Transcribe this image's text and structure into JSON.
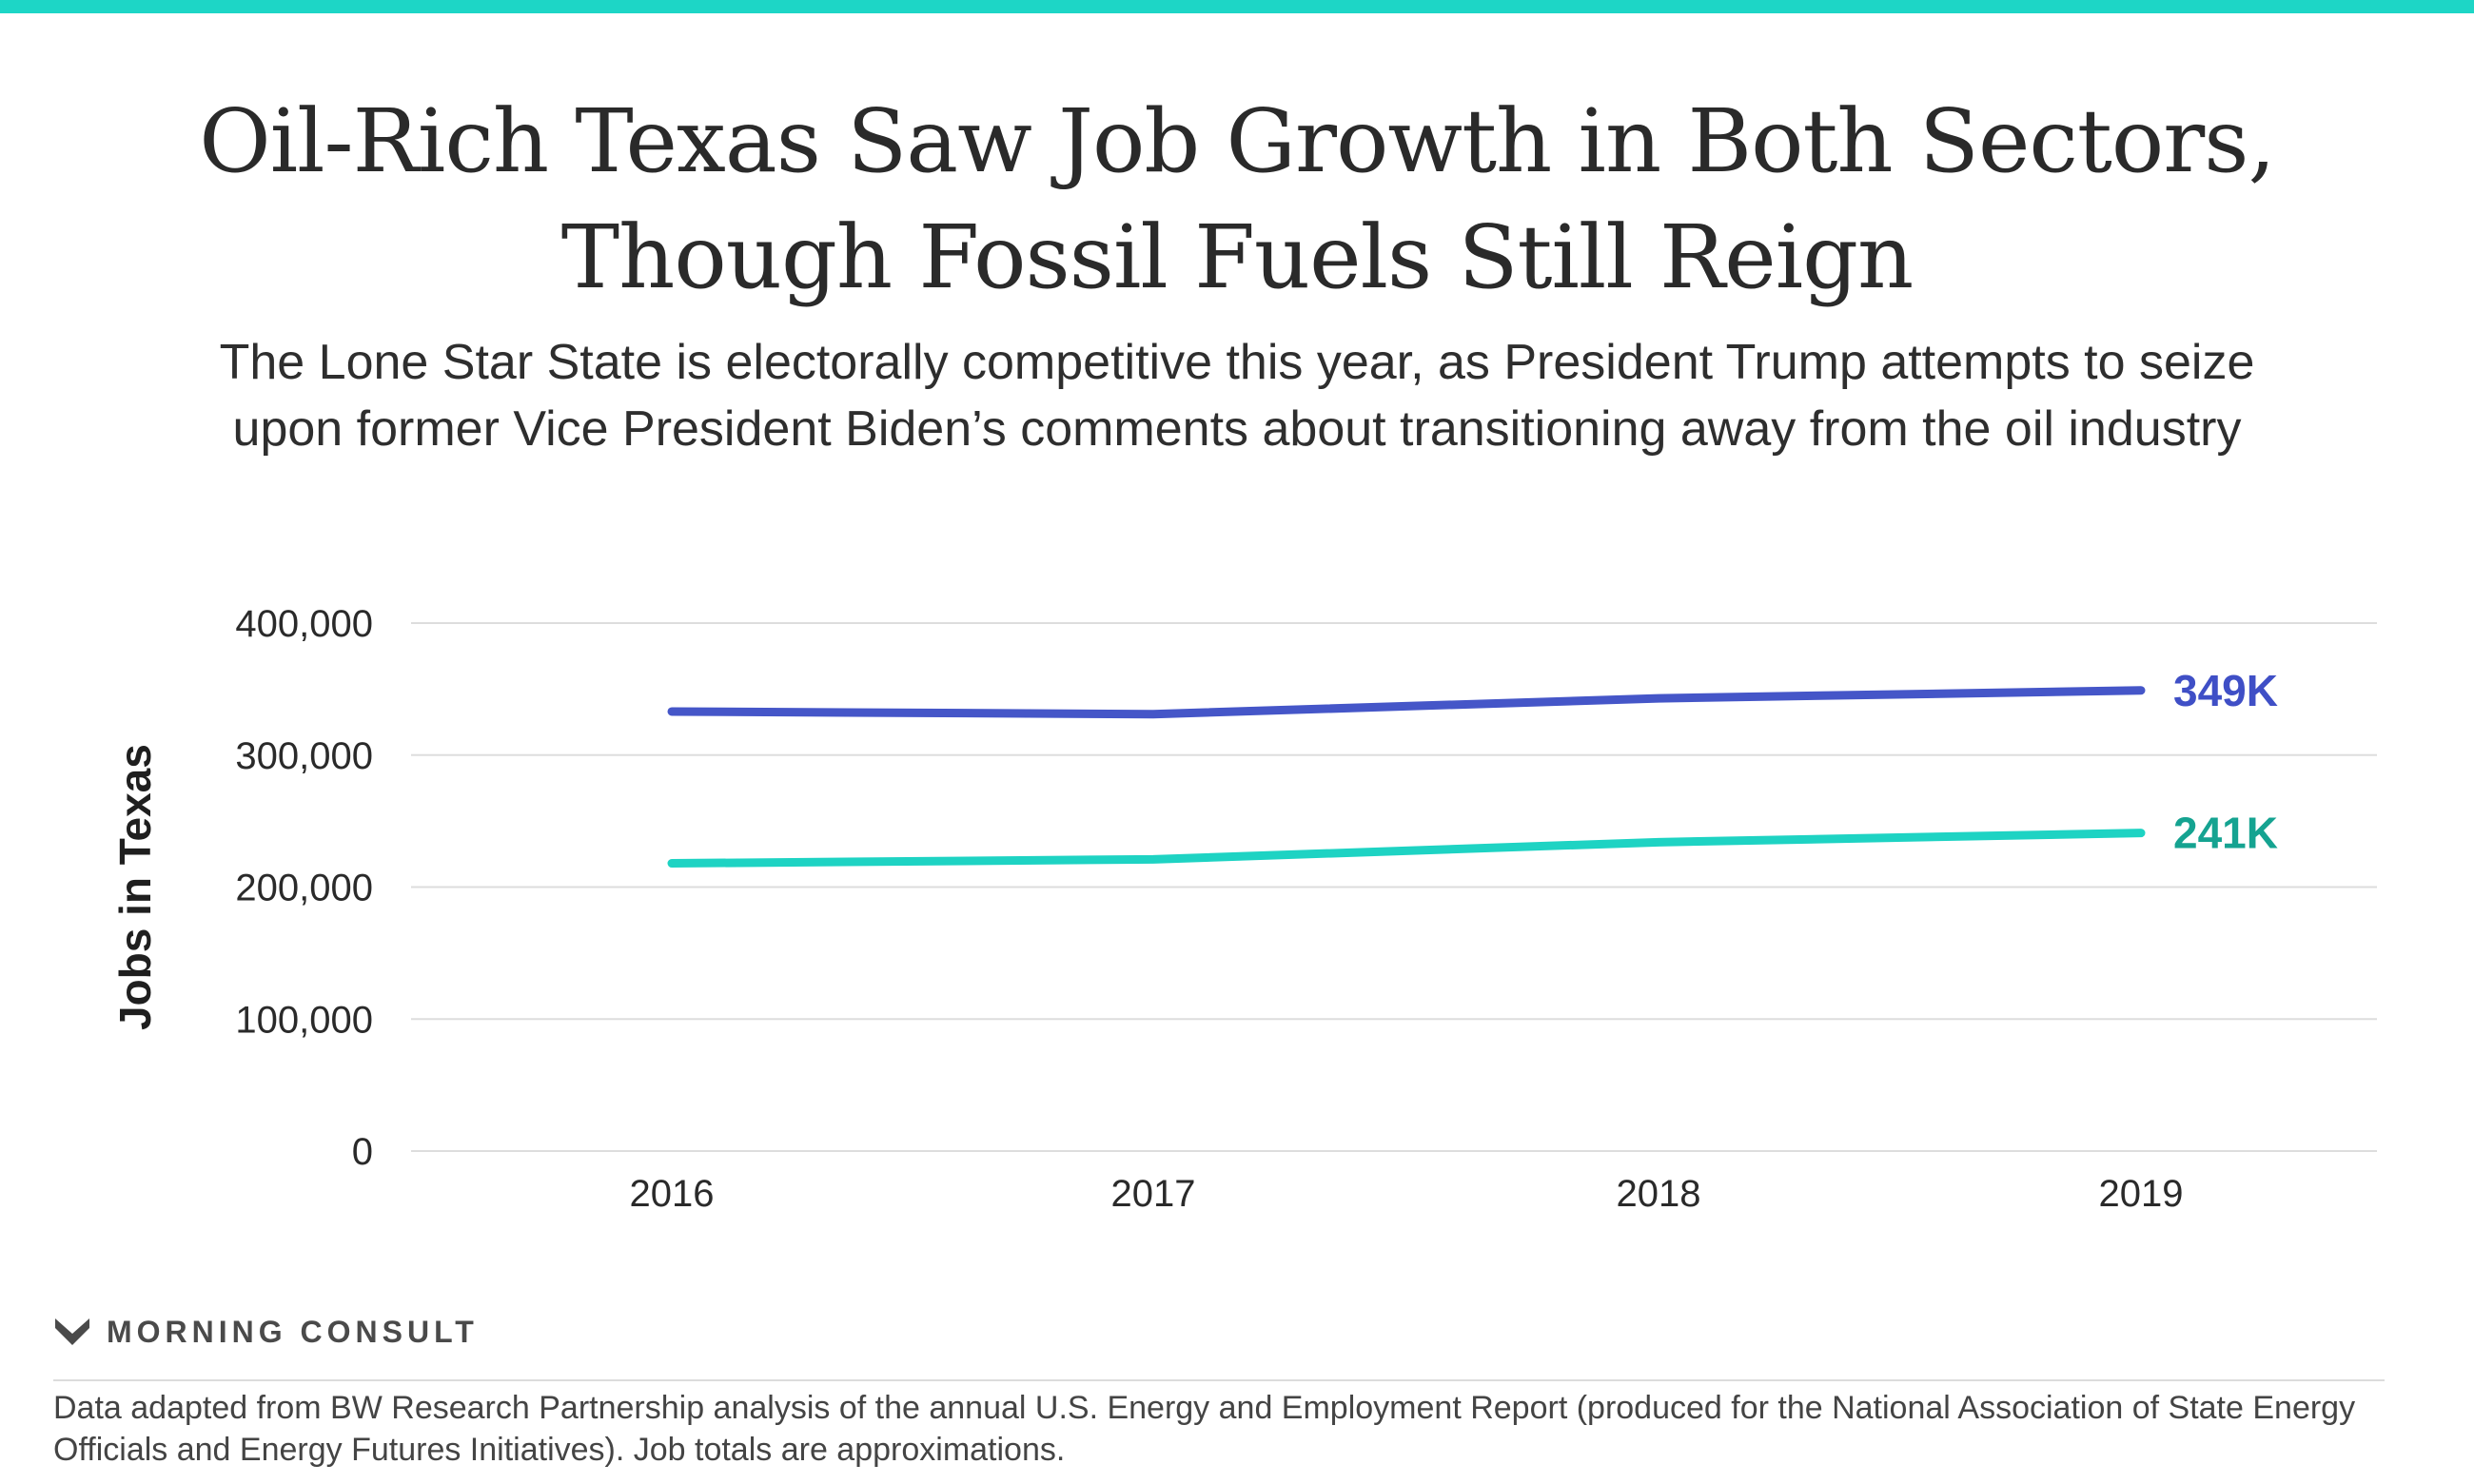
{
  "title_lines": [
    "Oil-Rich Texas Saw Job Growth in Both Sectors,",
    "Though Fossil Fuels Still Reign"
  ],
  "subtitle_lines": [
    "The Lone Star State is electorally competitive this year, as President Trump attempts to seize",
    "upon former Vice President Biden’s comments about transitioning away from the oil industry"
  ],
  "colors": {
    "accent_bar": "#1dd6c6",
    "series_blue": "#4556c8",
    "series_teal": "#1ed3c3",
    "label_blue": "#3f4fc6",
    "label_teal": "#15a391",
    "grid": "#dddddd"
  },
  "chart_data": {
    "type": "line",
    "x": [
      "2016",
      "2017",
      "2018",
      "2019"
    ],
    "ylabel": "Jobs in Texas",
    "xlabel": "",
    "ylim": [
      0,
      400000
    ],
    "yticks": [
      0,
      100000,
      200000,
      300000,
      400000
    ],
    "ytick_labels": [
      "0",
      "100,000",
      "200,000",
      "300,000",
      "400,000"
    ],
    "grid": true,
    "series": [
      {
        "values": [
          333000,
          331000,
          343000,
          349000
        ],
        "end_label": "349K",
        "color": "#4556c8",
        "label_color": "#3f4fc6"
      },
      {
        "values": [
          218000,
          221000,
          234000,
          241000
        ],
        "end_label": "241K",
        "color": "#1ed3c3",
        "label_color": "#15a391"
      }
    ]
  },
  "branding": {
    "logo_icon": "morning-consult-logo-icon",
    "logo_text": "MORNING CONSULT"
  },
  "source_note": "Data adapted from BW Research Partnership analysis of the annual U.S. Energy and Employment Report (produced for the National Association of State Energy Officials and Energy Futures Initiatives). Job totals are approximations."
}
